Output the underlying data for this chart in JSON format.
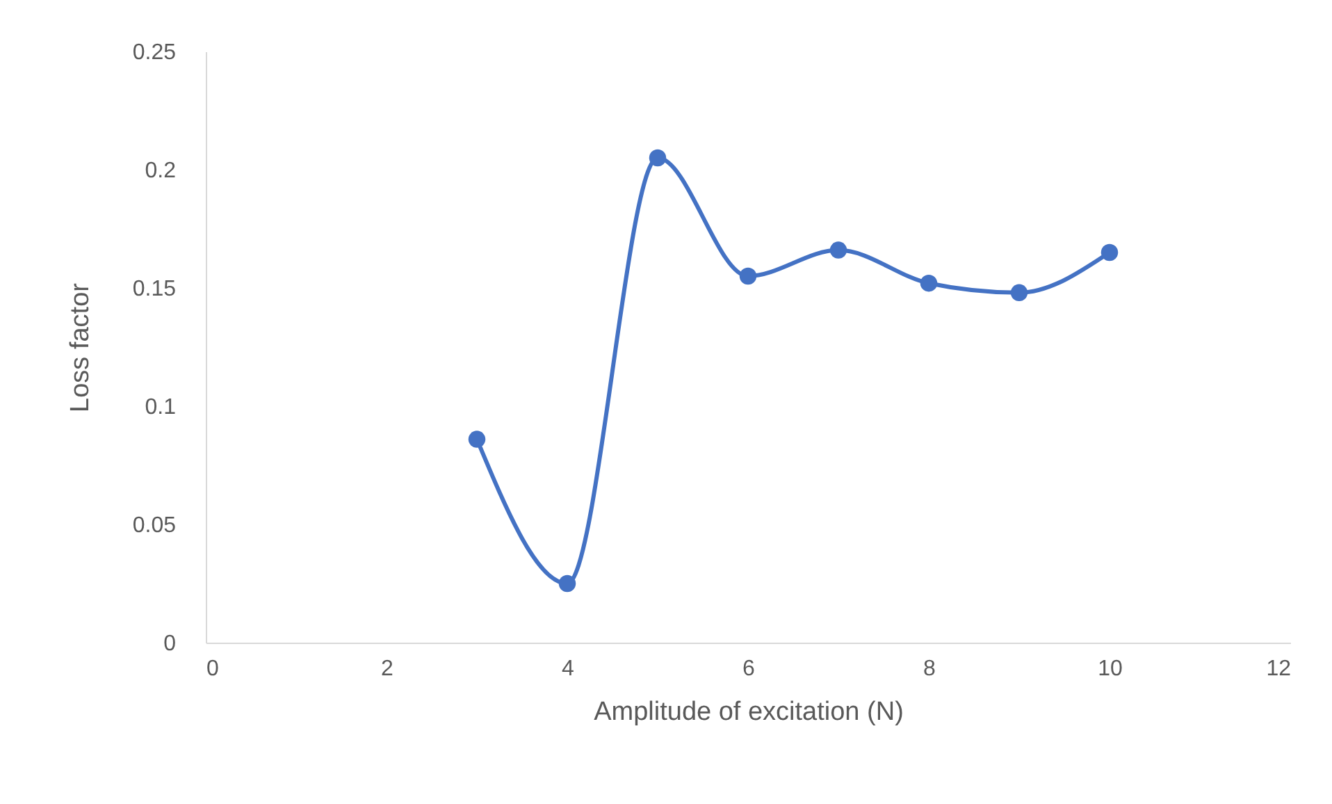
{
  "chart_data": {
    "type": "line",
    "xlabel": "Amplitude of excitation (N)",
    "ylabel": "Loss factor",
    "x": [
      3,
      4,
      5,
      6,
      7,
      8,
      9,
      10
    ],
    "series": [
      {
        "color": "#4472c4",
        "values": [
          0.086,
          0.025,
          0.205,
          0.155,
          0.166,
          0.152,
          0.148,
          0.165
        ]
      }
    ],
    "xlim": [
      0,
      12
    ],
    "xticks": [
      0,
      2,
      4,
      6,
      8,
      10,
      12
    ],
    "ylim": [
      0,
      0.25
    ],
    "yticks": [
      0,
      0.05,
      0.1,
      0.15,
      0.2,
      0.25
    ],
    "grid": false,
    "marker": "circle",
    "line_style": "solid"
  }
}
